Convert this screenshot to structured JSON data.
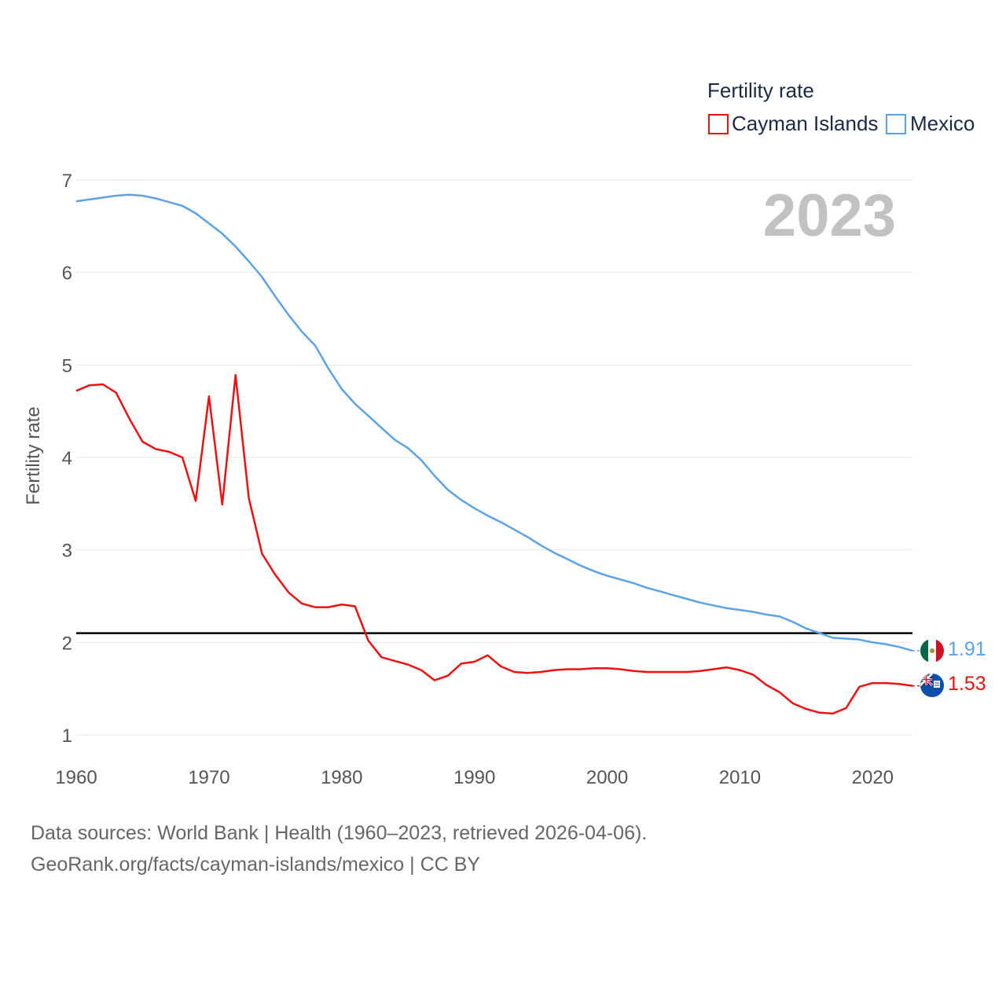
{
  "chart_data": {
    "type": "line",
    "legend_title": "Fertility rate",
    "ylabel": "Fertility rate",
    "year_label": "2023",
    "xlim": [
      1960,
      2023
    ],
    "ylim": [
      1,
      7
    ],
    "x_ticks": [
      "1960",
      "1970",
      "1980",
      "1990",
      "2000",
      "2010",
      "2020"
    ],
    "y_ticks": [
      "1",
      "2",
      "3",
      "4",
      "5",
      "6",
      "7"
    ],
    "reference_line": 2.1,
    "x": [
      1960,
      1961,
      1962,
      1963,
      1964,
      1965,
      1966,
      1967,
      1968,
      1969,
      1970,
      1971,
      1972,
      1973,
      1974,
      1975,
      1976,
      1977,
      1978,
      1979,
      1980,
      1981,
      1982,
      1983,
      1984,
      1985,
      1986,
      1987,
      1988,
      1989,
      1990,
      1991,
      1992,
      1993,
      1994,
      1995,
      1996,
      1997,
      1998,
      1999,
      2000,
      2001,
      2002,
      2003,
      2004,
      2005,
      2006,
      2007,
      2008,
      2009,
      2010,
      2011,
      2012,
      2013,
      2014,
      2015,
      2016,
      2017,
      2018,
      2019,
      2020,
      2021,
      2022,
      2023
    ],
    "series": [
      {
        "name": "Cayman Islands",
        "color": "#ee1111",
        "end_label": "1.53",
        "flag": "cayman-islands-flag-icon",
        "values": [
          4.72,
          4.78,
          4.79,
          4.7,
          4.42,
          4.17,
          4.09,
          4.06,
          4.0,
          3.53,
          4.66,
          3.49,
          4.89,
          3.56,
          2.96,
          2.73,
          2.54,
          2.42,
          2.38,
          2.38,
          2.41,
          2.39,
          2.02,
          1.84,
          1.8,
          1.76,
          1.7,
          1.59,
          1.64,
          1.77,
          1.79,
          1.86,
          1.74,
          1.68,
          1.67,
          1.68,
          1.7,
          1.71,
          1.71,
          1.72,
          1.72,
          1.71,
          1.69,
          1.68,
          1.68,
          1.68,
          1.68,
          1.69,
          1.71,
          1.73,
          1.7,
          1.65,
          1.54,
          1.46,
          1.34,
          1.28,
          1.24,
          1.23,
          1.29,
          1.52,
          1.56,
          1.56,
          1.55,
          1.53
        ]
      },
      {
        "name": "Mexico",
        "color": "#5ba3e6",
        "end_label": "1.91",
        "flag": "mexico-flag-icon",
        "values": [
          6.77,
          6.79,
          6.81,
          6.83,
          6.84,
          6.83,
          6.8,
          6.76,
          6.72,
          6.64,
          6.53,
          6.42,
          6.28,
          6.12,
          5.95,
          5.74,
          5.54,
          5.36,
          5.21,
          4.96,
          4.74,
          4.58,
          4.45,
          4.32,
          4.19,
          4.1,
          3.97,
          3.8,
          3.65,
          3.54,
          3.45,
          3.37,
          3.3,
          3.22,
          3.14,
          3.05,
          2.97,
          2.9,
          2.83,
          2.77,
          2.72,
          2.68,
          2.64,
          2.59,
          2.55,
          2.51,
          2.47,
          2.43,
          2.4,
          2.37,
          2.35,
          2.33,
          2.3,
          2.28,
          2.22,
          2.15,
          2.1,
          2.05,
          2.04,
          2.03,
          2.0,
          1.98,
          1.95,
          1.91
        ]
      }
    ]
  },
  "footer": {
    "source_line": "Data sources: World Bank | Health (1960–2023, retrieved 2026-04-06).",
    "url_line": "GeoRank.org/facts/cayman-islands/mexico | CC BY"
  }
}
